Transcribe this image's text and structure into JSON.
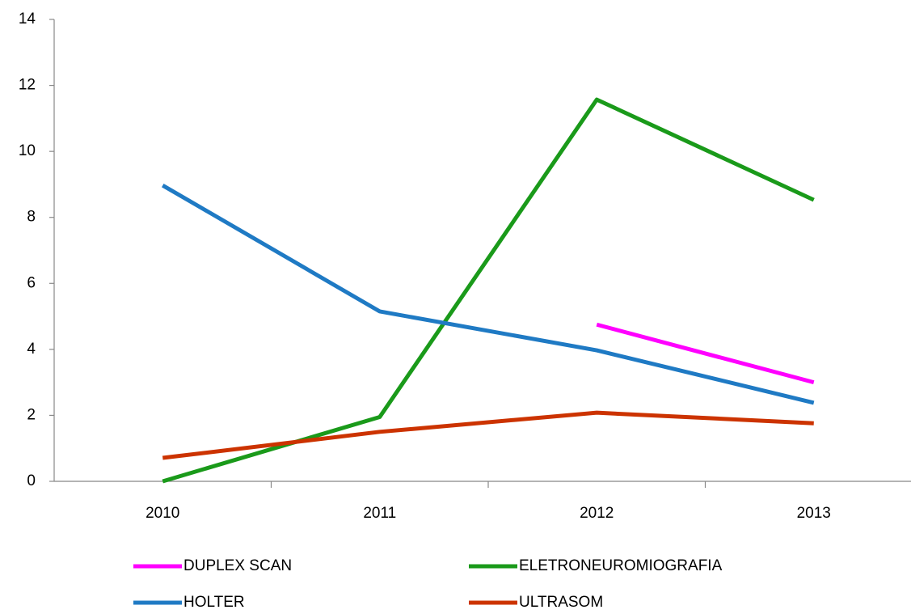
{
  "chart_data": {
    "type": "line",
    "categories": [
      "2010",
      "2011",
      "2012",
      "2013"
    ],
    "series": [
      {
        "name": "DUPLEX SCAN",
        "color": "#ff00ff",
        "values": [
          null,
          null,
          4.75,
          3.0
        ]
      },
      {
        "name": "ELETRONEUROMIOGRAFIA",
        "color": "#1a9a1a",
        "values": [
          0,
          1.95,
          11.57,
          8.53
        ]
      },
      {
        "name": "HOLTER",
        "color": "#1f7ac4",
        "values": [
          8.97,
          5.15,
          3.97,
          2.38
        ]
      },
      {
        "name": "ULTRASOM",
        "color": "#cc3300",
        "values": [
          0.71,
          1.5,
          2.08,
          1.76
        ]
      }
    ],
    "ylim": [
      0,
      14
    ],
    "yticks": [
      0,
      2,
      4,
      6,
      8,
      10,
      12,
      14
    ],
    "grid": false
  }
}
